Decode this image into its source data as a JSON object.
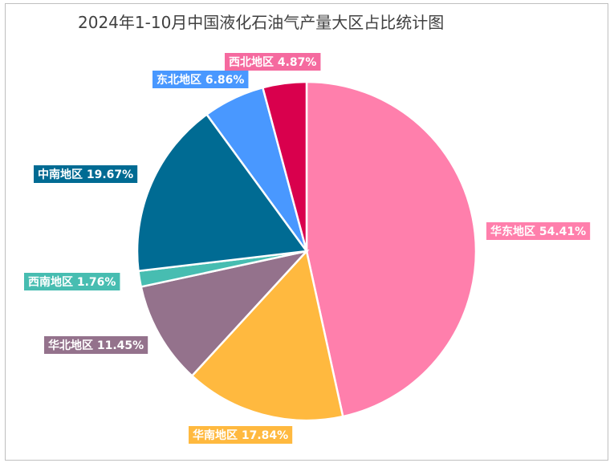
{
  "chart_data": {
    "type": "pie",
    "title": "2024年1-10月中国液化石油气产量大区占比统计图",
    "slices": [
      {
        "name": "华东地区",
        "value": 54.41,
        "label": "华东地区 54.41%",
        "color": "#ff7fac",
        "label_bg": "#ff7fac"
      },
      {
        "name": "华南地区",
        "value": 17.84,
        "label": "华南地区 17.84%",
        "color": "#ffb93f",
        "label_bg": "#ffb93f"
      },
      {
        "name": "华北地区",
        "value": 11.45,
        "label": "华北地区 11.45%",
        "color": "#94728c",
        "label_bg": "#94728c"
      },
      {
        "name": "西南地区",
        "value": 1.76,
        "label": "西南地区 1.76%",
        "color": "#47bdb1",
        "label_bg": "#47bdb1"
      },
      {
        "name": "中南地区",
        "value": 19.67,
        "label": "中南地区 19.67%",
        "color": "#006b93",
        "label_bg": "#006b93"
      },
      {
        "name": "东北地区",
        "value": 6.86,
        "label": "东北地区 6.86%",
        "color": "#4998ff",
        "label_bg": "#4998ff"
      },
      {
        "name": "西北地区",
        "value": 4.87,
        "label": "西北地区 4.87%",
        "color": "#d9004d",
        "label_bg": "#f56a9f"
      }
    ],
    "start_angle_deg": 0,
    "direction": "clockwise",
    "legend": "none",
    "data_labels": "outside"
  }
}
